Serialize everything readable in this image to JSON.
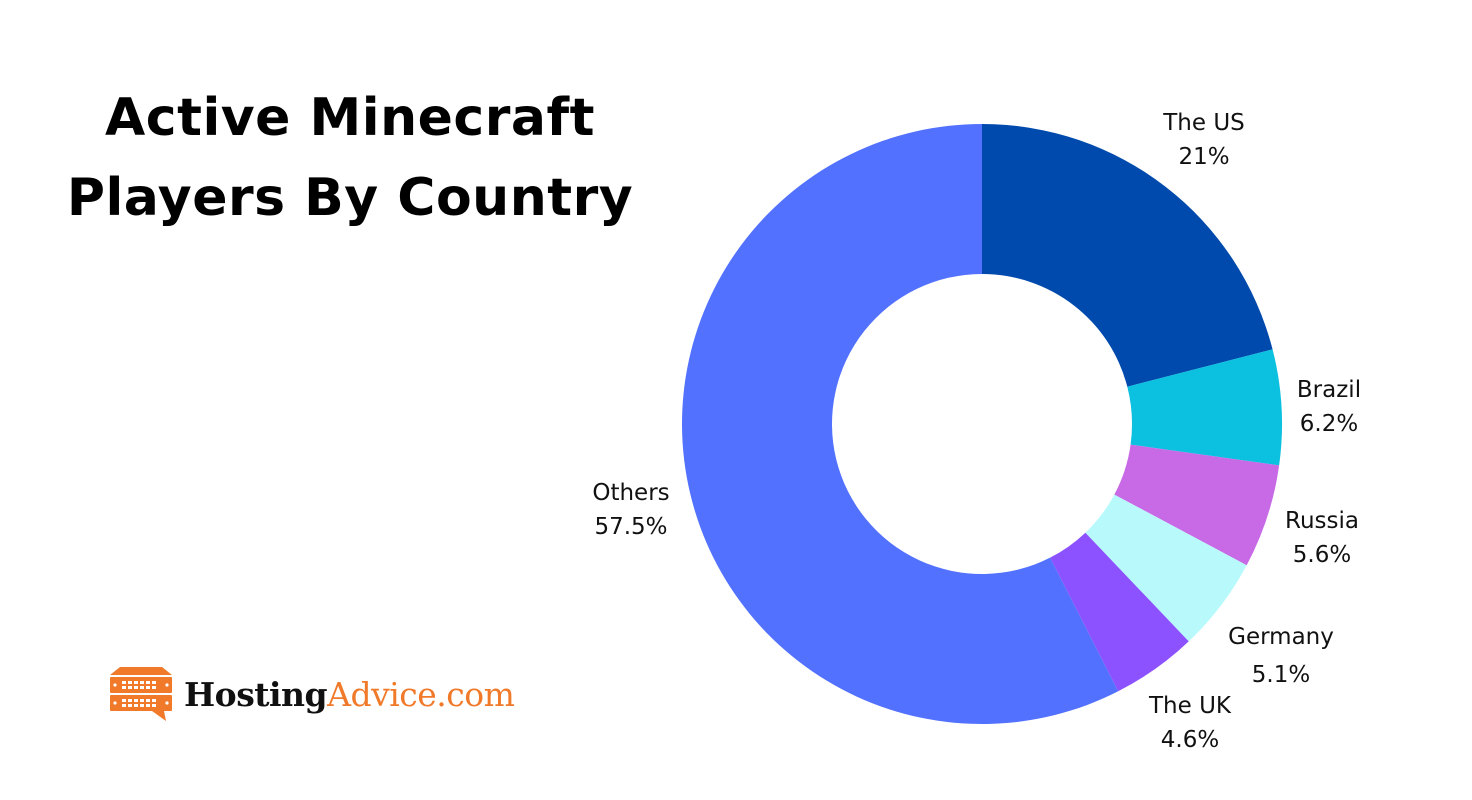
{
  "title": {
    "line1": "Active Minecraft",
    "line2": "Players By Country"
  },
  "logo": {
    "name_dark": "Hosting",
    "name_accent": "Advice.com",
    "icon": "server-speech-bubble-icon",
    "accent_color": "#f07a2a"
  },
  "chart_data": {
    "type": "pie",
    "variant": "donut",
    "title": "Active Minecraft Players By Country",
    "categories": [
      "The US",
      "Brazil",
      "Russia",
      "Germany",
      "The UK",
      "Others"
    ],
    "values": [
      21,
      6.2,
      5.6,
      5.1,
      4.6,
      57.5
    ],
    "value_labels": [
      "21%",
      "6.2%",
      "5.6%",
      "5.1%",
      "4.6%",
      "57.5%"
    ],
    "colors": [
      "#004aad",
      "#0cc0df",
      "#c86ae6",
      "#b8fafc",
      "#8c52ff",
      "#5271ff"
    ],
    "unit": "%",
    "start_angle_deg": 0,
    "direction": "clockwise",
    "legend": "none (labels placed outside slices)"
  }
}
